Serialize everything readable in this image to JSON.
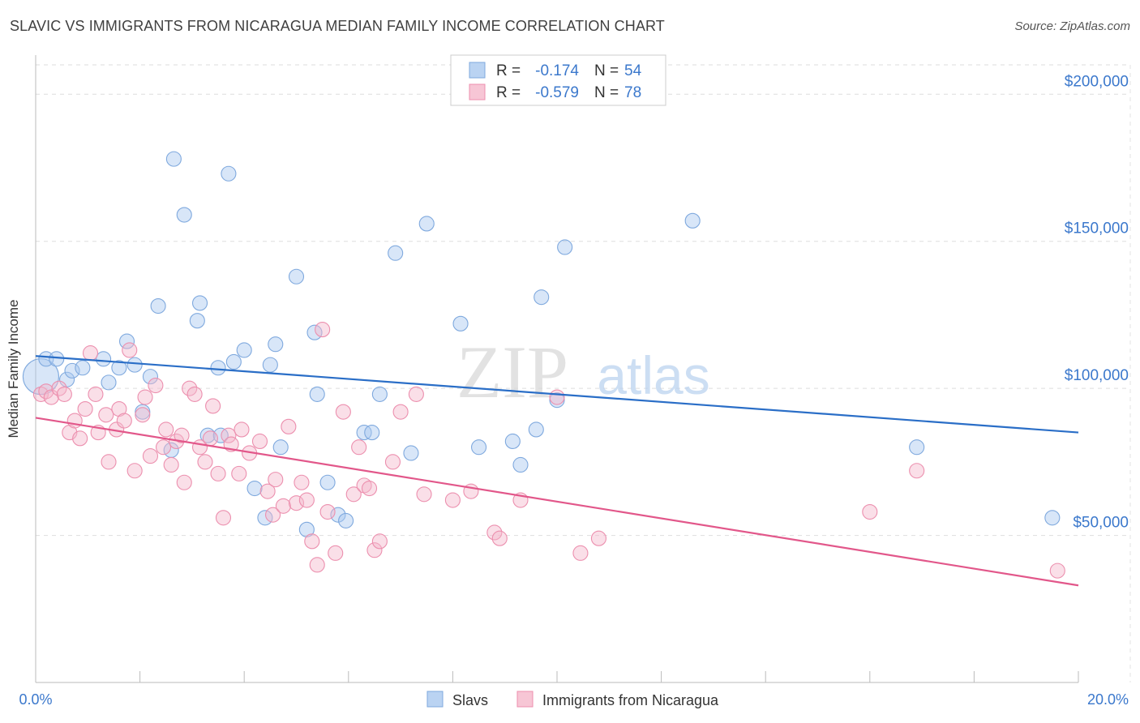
{
  "title": "SLAVIC VS IMMIGRANTS FROM NICARAGUA MEDIAN FAMILY INCOME CORRELATION CHART",
  "source": "Source: ZipAtlas.com",
  "watermark": {
    "zip": "ZIP",
    "atlas": "atlas"
  },
  "chart_data": {
    "type": "scatter",
    "title": "SLAVIC VS IMMIGRANTS FROM NICARAGUA MEDIAN FAMILY INCOME CORRELATION CHART",
    "ylabel": "Median Family Income",
    "xlabel": "",
    "xlim": [
      0,
      20
    ],
    "ylim": [
      0,
      210000
    ],
    "x_tick_labels": [
      "0.0%",
      "20.0%"
    ],
    "y_ticks": [
      50000,
      100000,
      150000,
      200000
    ],
    "y_tick_labels": [
      "$50,000",
      "$100,000",
      "$150,000",
      "$200,000"
    ],
    "grid": true,
    "legend_position": "bottom",
    "stats_box": [
      {
        "r_label": "R =",
        "r": "-0.174",
        "n_label": "N =",
        "n": "54"
      },
      {
        "r_label": "R =",
        "r": "-0.579",
        "n_label": "N =",
        "n": "78"
      }
    ],
    "series": [
      {
        "name": "Slavs",
        "color": "#a9c8ef",
        "stroke": "#7fa9de",
        "line_color": "#2a6ec7",
        "trend": {
          "x": [
            0,
            20
          ],
          "y": [
            111000,
            85000
          ]
        },
        "points": [
          [
            0.1,
            104000
          ],
          [
            0.2,
            110000
          ],
          [
            0.4,
            110000
          ],
          [
            0.6,
            103000
          ],
          [
            0.7,
            106000
          ],
          [
            0.9,
            107000
          ],
          [
            1.3,
            110000
          ],
          [
            1.4,
            102000
          ],
          [
            1.6,
            107000
          ],
          [
            1.75,
            116000
          ],
          [
            1.9,
            108000
          ],
          [
            2.05,
            92000
          ],
          [
            2.2,
            104000
          ],
          [
            2.35,
            128000
          ],
          [
            2.6,
            79000
          ],
          [
            2.65,
            178000
          ],
          [
            2.85,
            159000
          ],
          [
            3.1,
            123000
          ],
          [
            3.15,
            129000
          ],
          [
            3.3,
            84000
          ],
          [
            3.5,
            107000
          ],
          [
            3.7,
            173000
          ],
          [
            3.8,
            109000
          ],
          [
            4.0,
            113000
          ],
          [
            4.2,
            66000
          ],
          [
            4.4,
            56000
          ],
          [
            4.5,
            108000
          ],
          [
            4.6,
            115000
          ],
          [
            4.7,
            80000
          ],
          [
            5.0,
            138000
          ],
          [
            5.2,
            52000
          ],
          [
            5.35,
            119000
          ],
          [
            5.4,
            98000
          ],
          [
            5.6,
            68000
          ],
          [
            5.8,
            57000
          ],
          [
            5.95,
            55000
          ],
          [
            6.3,
            85000
          ],
          [
            6.45,
            85000
          ],
          [
            6.6,
            98000
          ],
          [
            6.9,
            146000
          ],
          [
            7.2,
            78000
          ],
          [
            7.5,
            156000
          ],
          [
            8.15,
            122000
          ],
          [
            8.5,
            80000
          ],
          [
            9.15,
            82000
          ],
          [
            9.3,
            74000
          ],
          [
            9.6,
            86000
          ],
          [
            9.7,
            131000
          ],
          [
            10.0,
            96000
          ],
          [
            10.15,
            148000
          ],
          [
            12.6,
            157000
          ],
          [
            16.9,
            80000
          ],
          [
            19.5,
            56000
          ],
          [
            3.55,
            84000
          ]
        ]
      },
      {
        "name": "Immigrants from Nicaragua",
        "color": "#f5b8cb",
        "stroke": "#ec8fae",
        "line_color": "#e2578a",
        "trend": {
          "x": [
            0,
            20
          ],
          "y": [
            90000,
            33000
          ]
        },
        "points": [
          [
            0.1,
            98000
          ],
          [
            0.2,
            99000
          ],
          [
            0.3,
            97000
          ],
          [
            0.45,
            100000
          ],
          [
            0.55,
            98000
          ],
          [
            0.65,
            85000
          ],
          [
            0.75,
            89000
          ],
          [
            0.85,
            83000
          ],
          [
            0.95,
            93000
          ],
          [
            1.05,
            112000
          ],
          [
            1.15,
            98000
          ],
          [
            1.2,
            85000
          ],
          [
            1.35,
            91000
          ],
          [
            1.4,
            75000
          ],
          [
            1.55,
            86000
          ],
          [
            1.6,
            93000
          ],
          [
            1.7,
            89000
          ],
          [
            1.8,
            113000
          ],
          [
            1.9,
            72000
          ],
          [
            2.05,
            91000
          ],
          [
            2.1,
            97000
          ],
          [
            2.2,
            77000
          ],
          [
            2.3,
            101000
          ],
          [
            2.45,
            80000
          ],
          [
            2.5,
            86000
          ],
          [
            2.6,
            74000
          ],
          [
            2.7,
            82000
          ],
          [
            2.8,
            84000
          ],
          [
            2.85,
            68000
          ],
          [
            2.95,
            100000
          ],
          [
            3.05,
            98000
          ],
          [
            3.15,
            80000
          ],
          [
            3.25,
            75000
          ],
          [
            3.35,
            83000
          ],
          [
            3.4,
            94000
          ],
          [
            3.5,
            71000
          ],
          [
            3.6,
            56000
          ],
          [
            3.7,
            84000
          ],
          [
            3.75,
            81000
          ],
          [
            3.9,
            71000
          ],
          [
            3.95,
            86000
          ],
          [
            4.1,
            78000
          ],
          [
            4.3,
            82000
          ],
          [
            4.45,
            65000
          ],
          [
            4.55,
            57000
          ],
          [
            4.6,
            69000
          ],
          [
            4.75,
            60000
          ],
          [
            4.85,
            87000
          ],
          [
            5.0,
            61000
          ],
          [
            5.1,
            68000
          ],
          [
            5.2,
            62000
          ],
          [
            5.3,
            48000
          ],
          [
            5.4,
            40000
          ],
          [
            5.5,
            120000
          ],
          [
            5.6,
            58000
          ],
          [
            5.75,
            44000
          ],
          [
            5.9,
            92000
          ],
          [
            6.1,
            64000
          ],
          [
            6.2,
            80000
          ],
          [
            6.3,
            67000
          ],
          [
            6.4,
            66000
          ],
          [
            6.5,
            45000
          ],
          [
            6.6,
            48000
          ],
          [
            6.85,
            75000
          ],
          [
            7.0,
            92000
          ],
          [
            7.3,
            98000
          ],
          [
            7.45,
            64000
          ],
          [
            8.0,
            62000
          ],
          [
            8.35,
            65000
          ],
          [
            8.8,
            51000
          ],
          [
            8.9,
            49000
          ],
          [
            9.3,
            62000
          ],
          [
            10.0,
            97000
          ],
          [
            10.45,
            44000
          ],
          [
            10.8,
            49000
          ],
          [
            16.0,
            58000
          ],
          [
            16.9,
            72000
          ],
          [
            19.6,
            38000
          ]
        ]
      }
    ]
  }
}
